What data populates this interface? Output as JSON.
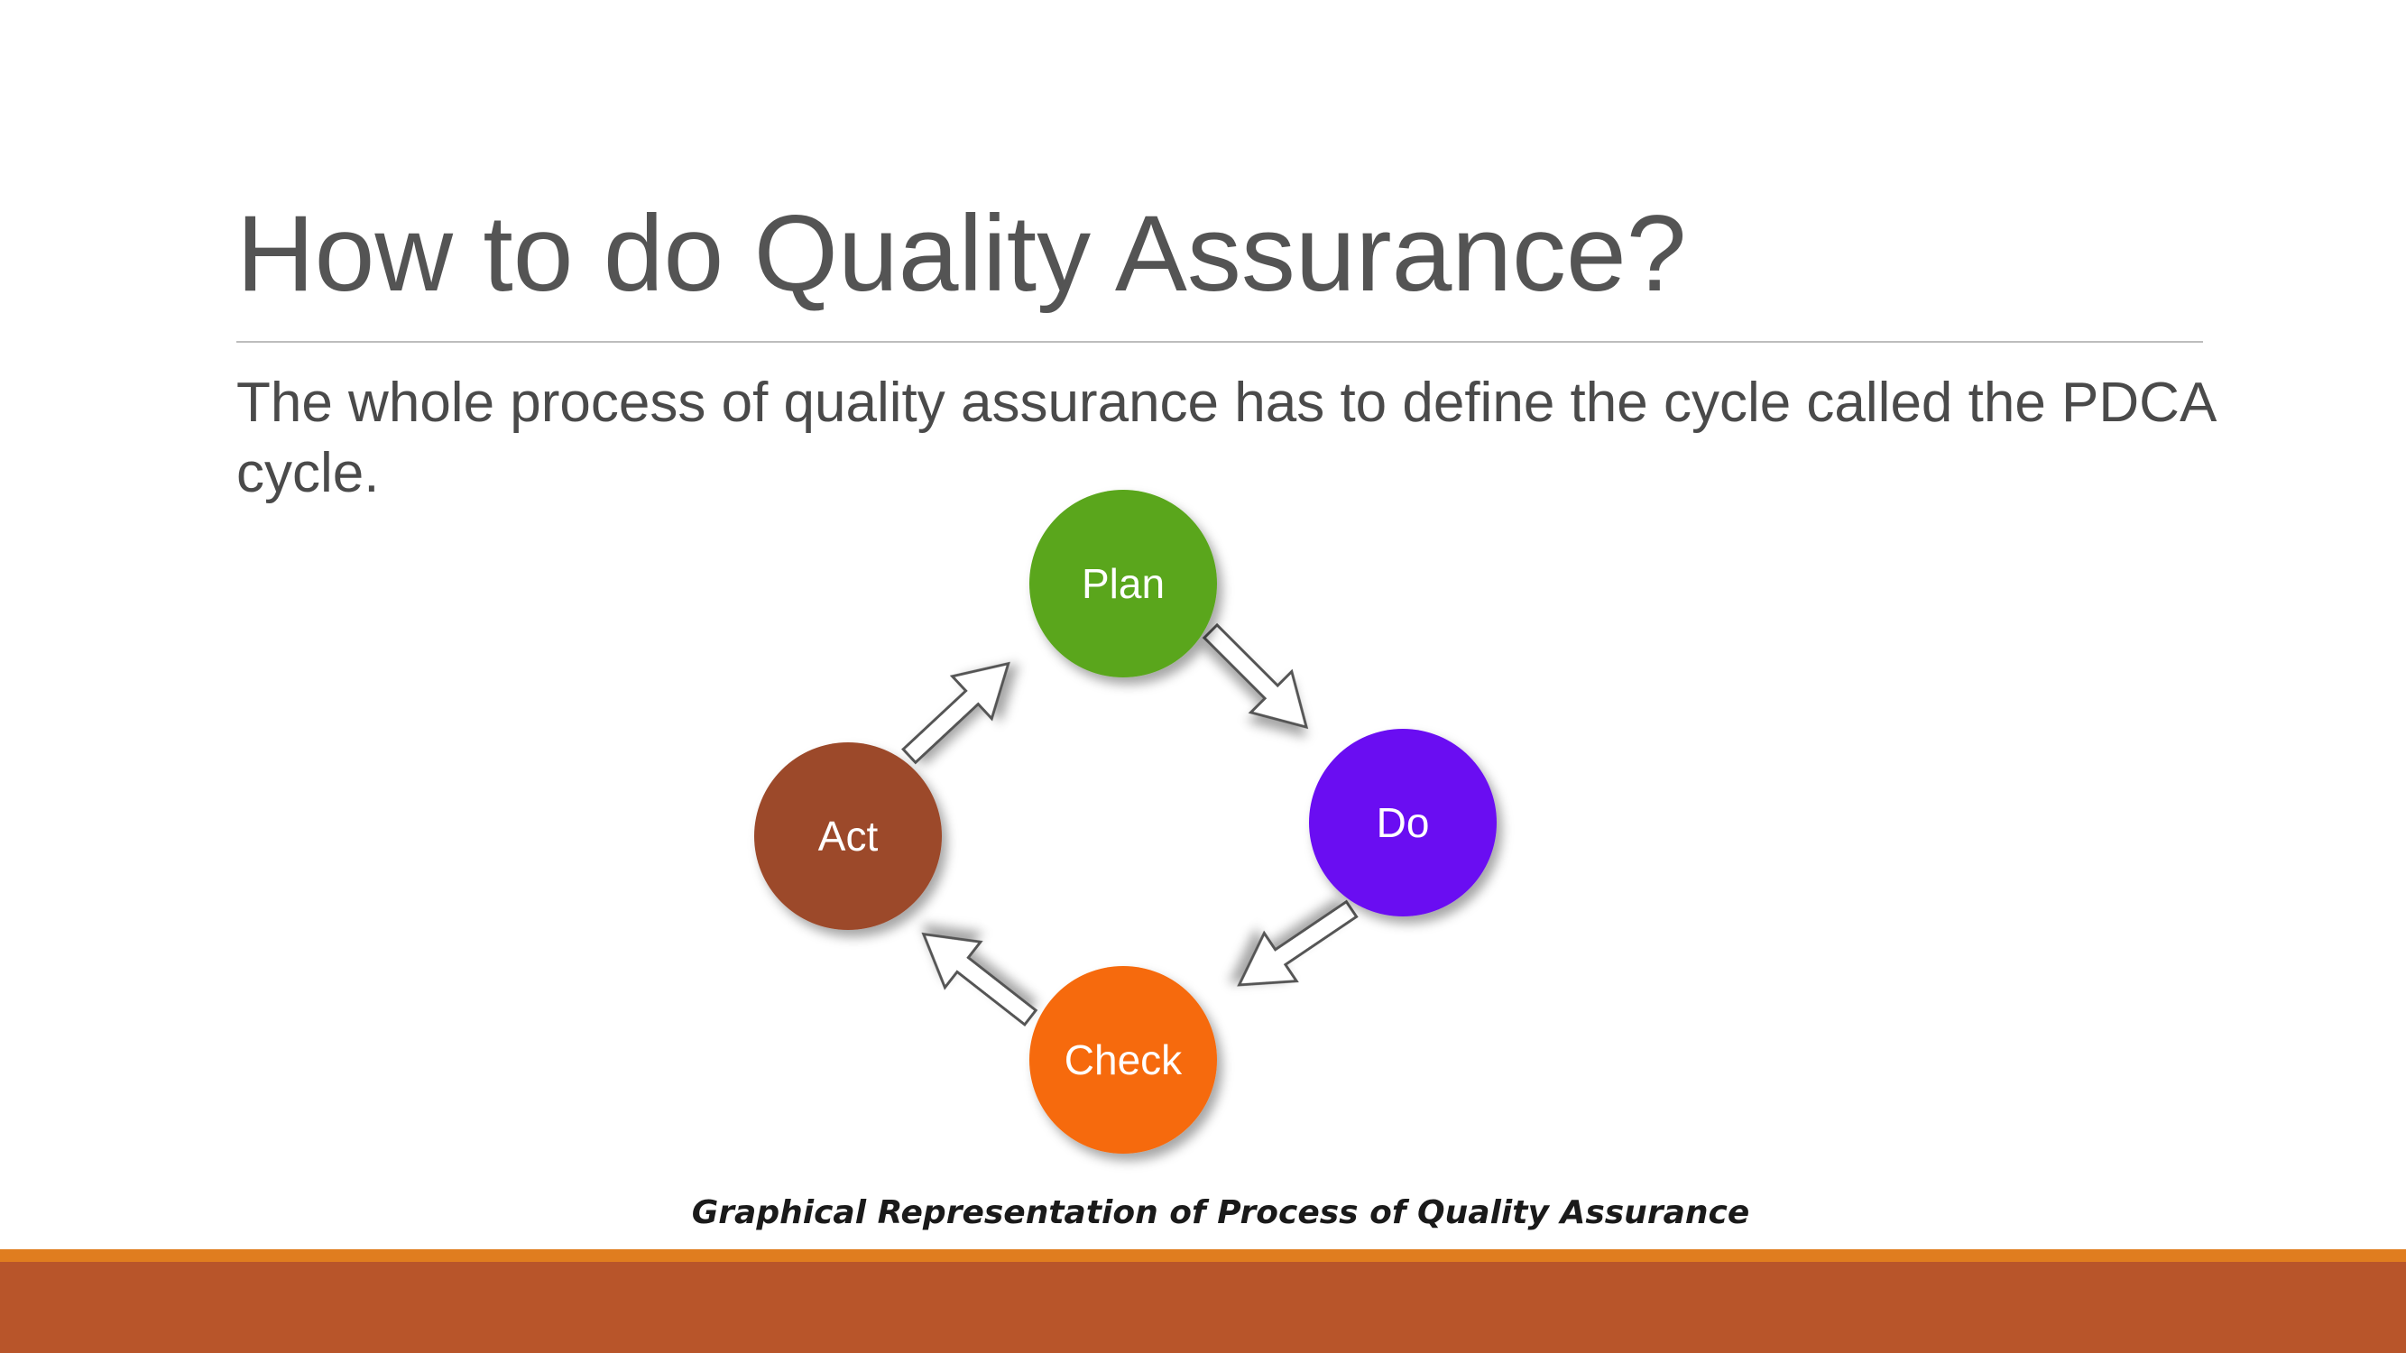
{
  "slide": {
    "title": "How to do Quality Assurance?",
    "body": "The whole process of quality assurance has to define the cycle called the PDCA cycle."
  },
  "diagram": {
    "caption": "Graphical Representation of Process of Quality Assurance",
    "nodes": [
      {
        "id": "plan",
        "label": "Plan",
        "color": "#5aa61e"
      },
      {
        "id": "do",
        "label": "Do",
        "color": "#6a0ff2"
      },
      {
        "id": "check",
        "label": "Check",
        "color": "#f66a0a"
      },
      {
        "id": "act",
        "label": "Act",
        "color": "#9c4a2c"
      }
    ],
    "flow": [
      "Plan → Do",
      "Do → Check",
      "Check → Act",
      "Act → Plan"
    ]
  },
  "theme": {
    "stripe_color": "#e07d1f",
    "footer_color": "#b8552a",
    "title_color": "#545454"
  }
}
